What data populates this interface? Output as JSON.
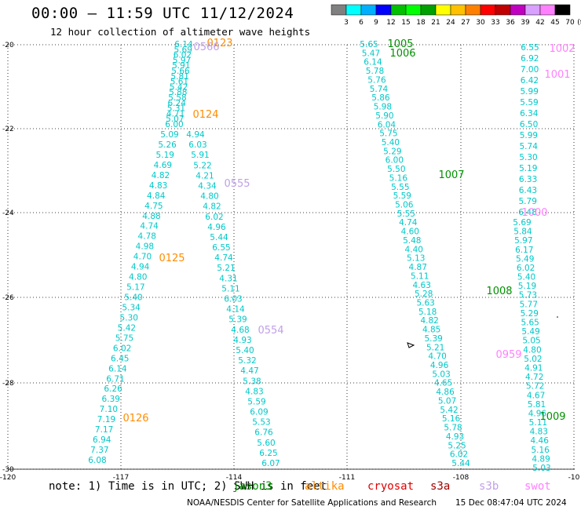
{
  "header": {
    "title": "00:00 – 11:59 UTC 11/12/2024",
    "subtitle": "12 hour collection of altimeter wave heights"
  },
  "colorbar": {
    "colors": [
      "#808080",
      "#00ffff",
      "#00b0ff",
      "#0000ff",
      "#00c000",
      "#00ff00",
      "#00a000",
      "#ffff00",
      "#ffc000",
      "#ff8000",
      "#ff0000",
      "#c00000",
      "#c000c0",
      "#d8a0ff",
      "#ff80ff",
      "#000000"
    ],
    "labels": [
      "3",
      "6",
      "9",
      "12",
      "15",
      "18",
      "21",
      "24",
      "27",
      "30",
      "33",
      "36",
      "39",
      "42",
      "45",
      "70",
      "(ft)"
    ]
  },
  "axes": {
    "lon_labels": [
      "-120",
      "-117",
      "-114",
      "-111",
      "-108",
      "-10"
    ],
    "lat_labels": [
      "-20",
      "-22",
      "-24",
      "-26",
      "-28",
      "-30"
    ]
  },
  "satellite_colors": {
    "jason3": "#009000",
    "altika": "#ff8c00",
    "cryosat": "#e00000",
    "s3a": "#a00000",
    "s3b": "#c0a0e8",
    "swot": "#ff80ff",
    "value": "#00c8c8"
  },
  "tracks": [
    {
      "values": [
        "6.14",
        "5.69",
        "6.02",
        "5.97",
        "5.91",
        "5.66",
        "5.81",
        "5.61",
        "5.42",
        "5.88",
        "5.58",
        "6.24",
        "5.31",
        "4.71",
        "5.07",
        "6.00"
      ]
    },
    {
      "values": [
        "5.09",
        "4.94",
        "5.26",
        "6.03",
        "5.19",
        "5.91",
        "4.69",
        "5.22",
        "4.82",
        "4.21",
        "4.83",
        "4.34",
        "4.84",
        "4.80",
        "4.75",
        "4.82",
        "4.88",
        "6.02",
        "4.74",
        "4.96",
        "4.78",
        "5.44",
        "4.98",
        "6.55",
        "4.70",
        "4.74",
        "4.94",
        "5.21",
        "4.80",
        "4.31",
        "5.17",
        "5.11",
        "5.40",
        "6.03",
        "5.34",
        "4.14",
        "5.30",
        "5.39",
        "5.42",
        "4.68",
        "5.75",
        "4.93",
        "6.02",
        "5.40",
        "6.45",
        "5.32",
        "6.14",
        "4.47",
        "6.71",
        "5.38",
        "6.26",
        "4.83",
        "6.39",
        "5.59",
        "7.10",
        "6.09",
        "7.19",
        "5.53",
        "7.17",
        "6.76",
        "6.94",
        "5.60",
        "7.37",
        "6.25",
        "6.08",
        "6.07"
      ]
    },
    {
      "values": [
        "5.65",
        "5.47",
        "6.14",
        "5.78",
        "5.76",
        "5.74",
        "5.86",
        "5.98",
        "5.90",
        "6.04",
        "5.75",
        "5.40",
        "5.29",
        "6.00",
        "5.50",
        "5.16",
        "5.55",
        "5.59",
        "5.06",
        "5.55",
        "4.74",
        "4.60",
        "5.48",
        "4.40",
        "5.13",
        "4.87",
        "5.11",
        "4.63",
        "5.28",
        "5.63",
        "5.18",
        "4.82",
        "4.85",
        "5.39",
        "5.21",
        "4.70",
        "4.96",
        "5.03",
        "4.65",
        "4.86",
        "5.07",
        "5.42",
        "5.16",
        "5.78",
        "4.93",
        "5.25",
        "6.02",
        "5.44"
      ]
    },
    {
      "values": [
        "6.55",
        "6.92",
        "7.00",
        "6.42",
        "5.99",
        "5.59",
        "6.34",
        "6.50",
        "5.99",
        "5.74",
        "5.30",
        "5.19",
        "6.33",
        "6.43",
        "5.79",
        "6.48",
        "5.69",
        "5.84",
        "5.97",
        "6.17",
        "5.49",
        "6.02",
        "5.40",
        "5.19",
        "5.73",
        "5.77",
        "5.29",
        "5.65",
        "5.49",
        "5.05",
        "4.80",
        "5.02",
        "4.91",
        "4.72",
        "5.72",
        "4.67",
        "5.81",
        "4.96",
        "5.11",
        "4.83",
        "4.46",
        "5.16",
        "4.89",
        "5.03"
      ]
    }
  ],
  "pass_labels": [
    {
      "text": "0123",
      "sat": "altika"
    },
    {
      "text": "0566",
      "sat": "s3b"
    },
    {
      "text": "0124",
      "sat": "altika"
    },
    {
      "text": "0555",
      "sat": "s3b"
    },
    {
      "text": "0125",
      "sat": "altika"
    },
    {
      "text": "0554",
      "sat": "s3b"
    },
    {
      "text": "0126",
      "sat": "altika"
    },
    {
      "text": "1005",
      "sat": "jason3"
    },
    {
      "text": "1006",
      "sat": "jason3"
    },
    {
      "text": "1007",
      "sat": "jason3"
    },
    {
      "text": "1008",
      "sat": "jason3"
    },
    {
      "text": "1009",
      "sat": "jason3"
    },
    {
      "text": "1002",
      "sat": "swot"
    },
    {
      "text": "1001",
      "sat": "swot"
    },
    {
      "text": "1000",
      "sat": "swot"
    },
    {
      "text": "0959",
      "sat": "swot"
    }
  ],
  "footer": {
    "note": "note: 1) Time is in UTC; 2) SWH is in feet",
    "legend": [
      {
        "label": "jason3",
        "sat": "jason3"
      },
      {
        "label": "altika",
        "sat": "altika"
      },
      {
        "label": "cryosat",
        "sat": "cryosat"
      },
      {
        "label": "s3a",
        "sat": "s3a"
      },
      {
        "label": "s3b",
        "sat": "s3b"
      },
      {
        "label": "swot",
        "sat": "swot"
      }
    ],
    "credit": "NOAA/NESDIS Center for Satellite Applications and Research",
    "timestamp": "15 Dec 08:47:04 UTC 2024"
  }
}
